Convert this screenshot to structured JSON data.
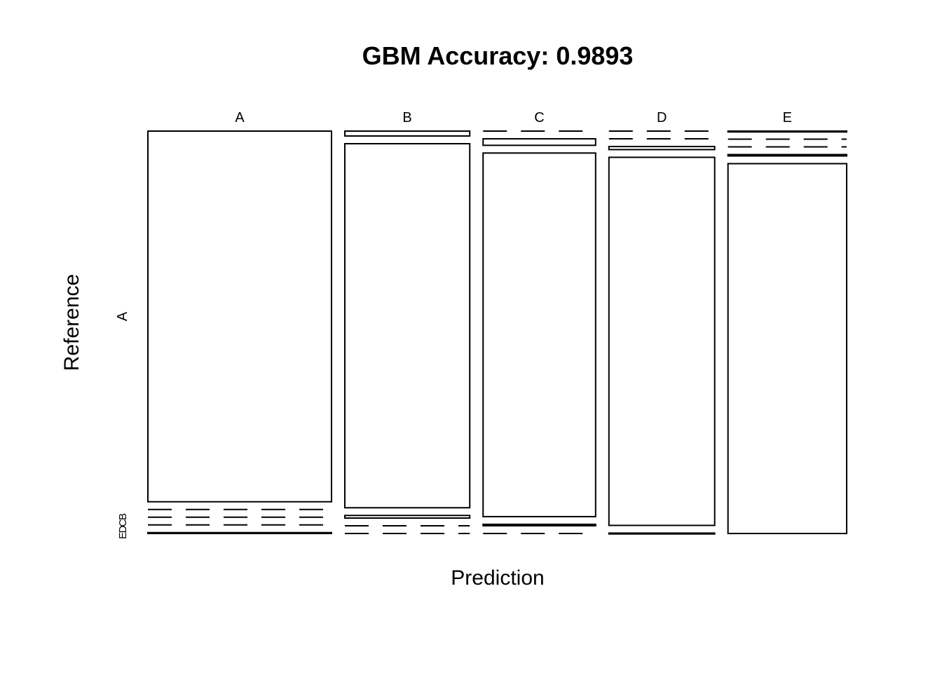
{
  "chart_data": {
    "type": "mosaic",
    "title": "GBM Accuracy: 0.9893",
    "xlabel": "Prediction",
    "ylabel": "Reference",
    "x_categories": [
      "A",
      "B",
      "C",
      "D",
      "E"
    ],
    "y_categories": [
      "A",
      "B",
      "C",
      "D",
      "E"
    ],
    "y_tick_labels": [
      "A",
      "B",
      "C",
      "D",
      "E"
    ],
    "counts": [
      [
        1670,
        0,
        0,
        0,
        4
      ],
      [
        15,
        1116,
        8,
        0,
        0
      ],
      [
        0,
        18,
        1004,
        4,
        0
      ],
      [
        0,
        0,
        8,
        955,
        1
      ],
      [
        1,
        0,
        0,
        4,
        1077
      ]
    ]
  }
}
